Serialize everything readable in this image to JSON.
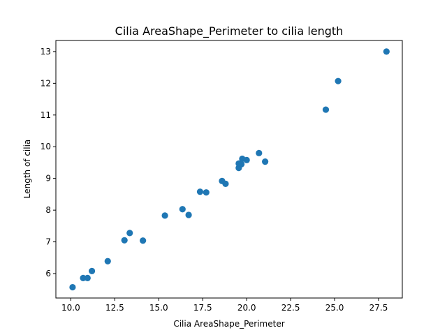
{
  "chart_data": {
    "type": "scatter",
    "title": "Cilia AreaShape_Perimeter to cilia length",
    "xlabel": "Cilia AreaShape_Perimeter",
    "ylabel": "Length of cilia",
    "xlim": [
      9.15,
      28.85
    ],
    "ylim": [
      5.23,
      13.35
    ],
    "xticks": [
      10.0,
      12.5,
      15.0,
      17.5,
      20.0,
      22.5,
      25.0,
      27.5
    ],
    "xtick_labels": [
      "10.0",
      "12.5",
      "15.0",
      "17.5",
      "20.0",
      "22.5",
      "25.0",
      "27.5"
    ],
    "yticks": [
      6,
      7,
      8,
      9,
      10,
      11,
      12,
      13
    ],
    "ytick_labels": [
      "6",
      "7",
      "8",
      "9",
      "10",
      "11",
      "12",
      "13"
    ],
    "grid": false,
    "color": "#1f77b4",
    "points": [
      {
        "x": 10.1,
        "y": 5.57
      },
      {
        "x": 10.7,
        "y": 5.86
      },
      {
        "x": 10.95,
        "y": 5.86
      },
      {
        "x": 11.2,
        "y": 6.08
      },
      {
        "x": 12.1,
        "y": 6.39
      },
      {
        "x": 13.05,
        "y": 7.05
      },
      {
        "x": 13.35,
        "y": 7.28
      },
      {
        "x": 14.1,
        "y": 7.04
      },
      {
        "x": 15.35,
        "y": 7.83
      },
      {
        "x": 16.35,
        "y": 8.03
      },
      {
        "x": 16.7,
        "y": 7.85
      },
      {
        "x": 17.35,
        "y": 8.58
      },
      {
        "x": 17.7,
        "y": 8.56
      },
      {
        "x": 18.6,
        "y": 8.92
      },
      {
        "x": 18.8,
        "y": 8.83
      },
      {
        "x": 19.55,
        "y": 9.33
      },
      {
        "x": 19.55,
        "y": 9.47
      },
      {
        "x": 19.7,
        "y": 9.45
      },
      {
        "x": 19.75,
        "y": 9.62
      },
      {
        "x": 20.0,
        "y": 9.58
      },
      {
        "x": 20.7,
        "y": 9.8
      },
      {
        "x": 21.05,
        "y": 9.53
      },
      {
        "x": 24.5,
        "y": 11.17
      },
      {
        "x": 25.2,
        "y": 12.07
      },
      {
        "x": 27.95,
        "y": 13.0
      }
    ]
  }
}
